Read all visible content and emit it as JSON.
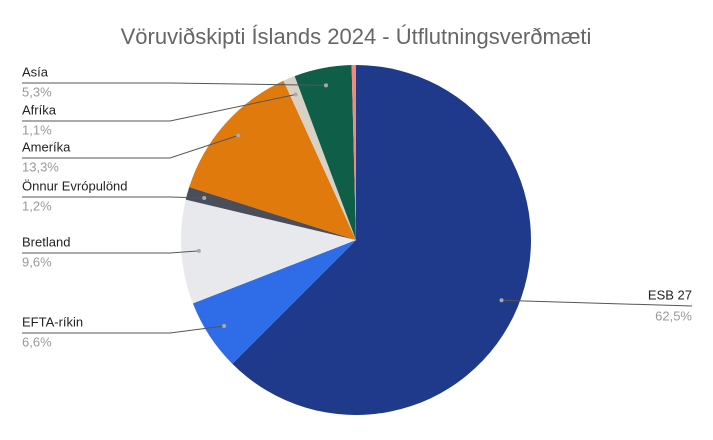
{
  "chart_data": {
    "type": "pie",
    "title": "Vöruviðskipti Íslands 2024 - Útflutningsverðmæti",
    "categories": [
      "ESB 27",
      "EFTA-ríkin",
      "Bretland",
      "Önnur Evrópulönd",
      "Ameríka",
      "Afríka",
      "Asía",
      null
    ],
    "values": [
      62.5,
      6.6,
      9.6,
      1.2,
      13.3,
      1.1,
      5.3,
      0.4
    ],
    "value_labels": [
      "62,5%",
      "6,6%",
      "9,6%",
      "1,2%",
      "13,3%",
      "1,1%",
      "5,3%",
      null
    ],
    "colors": [
      "#1f3a8a",
      "#2f6de8",
      "#e8e9ec",
      "#4a4e5a",
      "#e07a0c",
      "#d8d2c6",
      "#0e5e48",
      "#f08a80"
    ]
  }
}
